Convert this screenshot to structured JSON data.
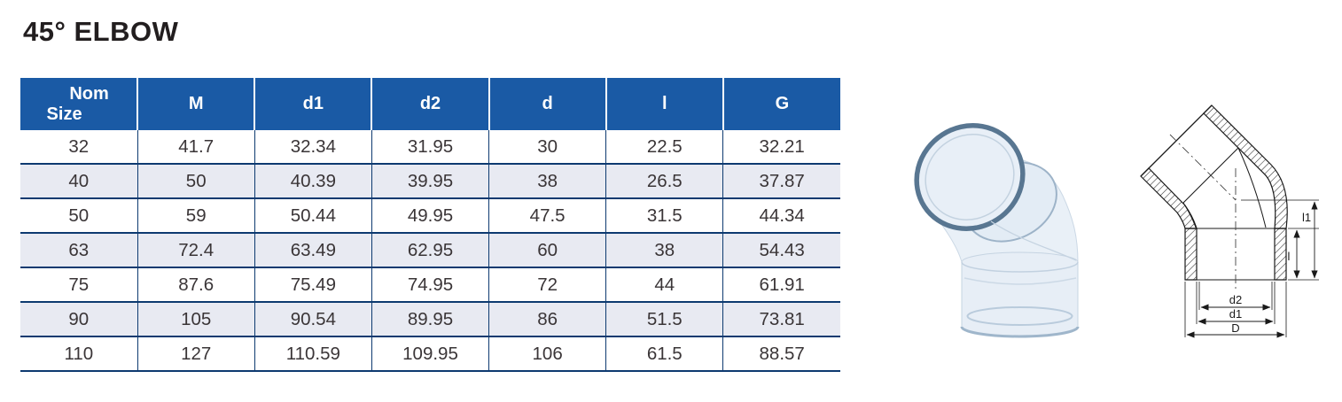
{
  "title": "45° ELBOW",
  "colors": {
    "header_bg": "#1A5AA5",
    "header_text": "#FFFFFF",
    "grid_line": "#0D3A70",
    "row_stripe": "#E8EAF2",
    "body_text": "#3A3537",
    "photo_tint": "#E8EFF7",
    "photo_rim": "#587691"
  },
  "table": {
    "headers": [
      {
        "lines": [
          "Nom",
          "Size"
        ]
      },
      {
        "lines": [
          "M"
        ]
      },
      {
        "lines": [
          "d1"
        ]
      },
      {
        "lines": [
          "d2"
        ]
      },
      {
        "lines": [
          "d"
        ]
      },
      {
        "lines": [
          "l"
        ]
      },
      {
        "lines": [
          "G"
        ]
      }
    ],
    "rows": [
      [
        "32",
        "41.7",
        "32.34",
        "31.95",
        "30",
        "22.5",
        "32.21"
      ],
      [
        "40",
        "50",
        "40.39",
        "39.95",
        "38",
        "26.5",
        "37.87"
      ],
      [
        "50",
        "59",
        "50.44",
        "49.95",
        "47.5",
        "31.5",
        "44.34"
      ],
      [
        "63",
        "72.4",
        "63.49",
        "62.95",
        "60",
        "38",
        "54.43"
      ],
      [
        "75",
        "87.6",
        "75.49",
        "74.95",
        "72",
        "44",
        "61.91"
      ],
      [
        "90",
        "105",
        "90.54",
        "89.95",
        "86",
        "51.5",
        "73.81"
      ],
      [
        "110",
        "127",
        "110.59",
        "109.95",
        "106",
        "61.5",
        "88.57"
      ]
    ]
  },
  "diagram": {
    "labels": {
      "l": "l",
      "l1": "l1",
      "d2": "d2",
      "d1": "d1",
      "D": "D"
    }
  }
}
